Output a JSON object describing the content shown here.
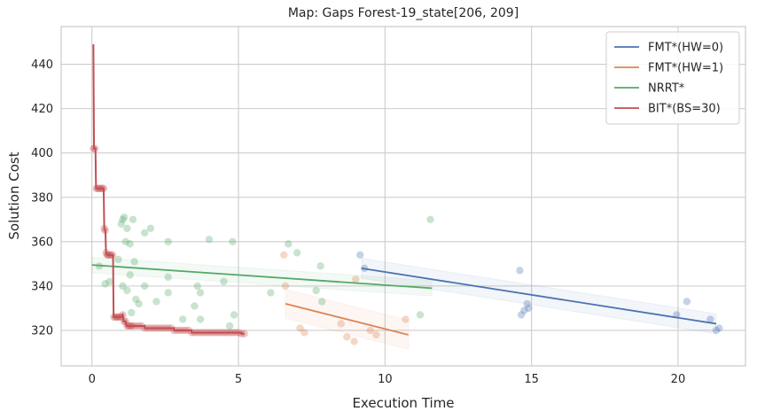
{
  "chart_data": {
    "type": "scatter",
    "title": "Map: Gaps Forest-19_state[206, 209]",
    "xlabel": "Execution Time",
    "ylabel": "Solution Cost",
    "xlim": [
      -1.05,
      22.3
    ],
    "ylim": [
      304,
      457
    ],
    "xticks": [
      0,
      5,
      10,
      15,
      20
    ],
    "yticks": [
      320,
      340,
      360,
      380,
      400,
      420,
      440
    ],
    "grid": true,
    "legend": {
      "position": "top-right"
    },
    "series": [
      {
        "name": "FMT*(HW=0)",
        "color": "#4c72b0",
        "points": [
          [
            9.15,
            354
          ],
          [
            9.3,
            348
          ],
          [
            14.6,
            347
          ],
          [
            14.65,
            327
          ],
          [
            14.75,
            329
          ],
          [
            14.85,
            332
          ],
          [
            14.9,
            330
          ],
          [
            19.95,
            327
          ],
          [
            20.3,
            333
          ],
          [
            21.1,
            325
          ],
          [
            21.3,
            320
          ],
          [
            21.4,
            321
          ]
        ],
        "trend": [
          [
            9.2,
            348
          ],
          [
            21.3,
            323
          ]
        ],
        "band_halfwidth": 4.5
      },
      {
        "name": "FMT*(HW=1)",
        "color": "#dd8452",
        "points": [
          [
            6.55,
            354
          ],
          [
            6.6,
            340
          ],
          [
            7.1,
            321
          ],
          [
            7.25,
            319
          ],
          [
            8.5,
            323
          ],
          [
            8.7,
            317
          ],
          [
            8.95,
            315
          ],
          [
            9.0,
            343
          ],
          [
            9.5,
            320
          ],
          [
            9.7,
            318
          ],
          [
            10.7,
            325
          ]
        ],
        "trend": [
          [
            6.6,
            332
          ],
          [
            10.8,
            318
          ]
        ],
        "band_halfwidth": 6.5
      },
      {
        "name": "NRRT*",
        "color": "#55a868",
        "points": [
          [
            0.25,
            349
          ],
          [
            0.45,
            341
          ],
          [
            0.6,
            342
          ],
          [
            0.9,
            352
          ],
          [
            1.0,
            368
          ],
          [
            1.05,
            370
          ],
          [
            1.1,
            371
          ],
          [
            1.15,
            360
          ],
          [
            1.2,
            366
          ],
          [
            1.3,
            359
          ],
          [
            1.4,
            370
          ],
          [
            1.05,
            340
          ],
          [
            1.2,
            338
          ],
          [
            1.3,
            345
          ],
          [
            1.45,
            351
          ],
          [
            1.35,
            328
          ],
          [
            1.5,
            334
          ],
          [
            1.6,
            332
          ],
          [
            1.8,
            340
          ],
          [
            1.8,
            364
          ],
          [
            2.0,
            366
          ],
          [
            2.2,
            333
          ],
          [
            2.6,
            360
          ],
          [
            2.6,
            344
          ],
          [
            2.6,
            337
          ],
          [
            3.1,
            325
          ],
          [
            3.5,
            331
          ],
          [
            3.6,
            340
          ],
          [
            3.7,
            337
          ],
          [
            3.7,
            325
          ],
          [
            4.0,
            361
          ],
          [
            4.5,
            342
          ],
          [
            4.7,
            322
          ],
          [
            4.8,
            360
          ],
          [
            4.85,
            327
          ],
          [
            6.1,
            337
          ],
          [
            6.7,
            359
          ],
          [
            7.0,
            355
          ],
          [
            7.65,
            338
          ],
          [
            7.8,
            349
          ],
          [
            7.85,
            333
          ],
          [
            11.2,
            327
          ],
          [
            11.55,
            370
          ]
        ],
        "trend": [
          [
            0.0,
            349.5
          ],
          [
            11.6,
            339
          ]
        ],
        "band_halfwidth": 3.5
      },
      {
        "name": "BIT*(BS=30)",
        "color": "#c44e52",
        "points": [
          [
            0.05,
            402
          ],
          [
            0.1,
            402
          ],
          [
            0.15,
            384
          ],
          [
            0.2,
            384
          ],
          [
            0.25,
            384
          ],
          [
            0.3,
            384
          ],
          [
            0.35,
            384
          ],
          [
            0.4,
            384
          ],
          [
            0.42,
            366
          ],
          [
            0.45,
            365
          ],
          [
            0.48,
            355
          ],
          [
            0.52,
            354
          ],
          [
            0.55,
            354
          ],
          [
            0.6,
            354
          ],
          [
            0.65,
            354
          ],
          [
            0.7,
            354
          ],
          [
            0.75,
            326
          ],
          [
            0.8,
            326
          ],
          [
            0.85,
            326
          ],
          [
            0.9,
            326
          ],
          [
            0.95,
            326
          ],
          [
            1.0,
            326
          ],
          [
            1.05,
            327
          ],
          [
            1.1,
            324
          ],
          [
            1.15,
            324
          ],
          [
            1.2,
            322
          ],
          [
            1.25,
            322
          ],
          [
            1.3,
            322
          ],
          [
            1.35,
            322
          ],
          [
            1.4,
            322
          ],
          [
            1.5,
            322
          ],
          [
            1.6,
            322
          ],
          [
            1.7,
            322
          ],
          [
            1.8,
            321
          ],
          [
            1.9,
            321
          ],
          [
            2.0,
            321
          ],
          [
            2.1,
            321
          ],
          [
            2.2,
            321
          ],
          [
            2.3,
            321
          ],
          [
            2.4,
            321
          ],
          [
            2.5,
            321
          ],
          [
            2.6,
            321
          ],
          [
            2.7,
            321
          ],
          [
            2.8,
            320
          ],
          [
            2.9,
            320
          ],
          [
            3.0,
            320
          ],
          [
            3.1,
            320
          ],
          [
            3.2,
            320
          ],
          [
            3.3,
            320
          ],
          [
            3.4,
            319
          ],
          [
            3.5,
            319
          ],
          [
            3.6,
            319
          ],
          [
            3.7,
            319
          ],
          [
            3.8,
            319
          ],
          [
            3.9,
            319
          ],
          [
            4.0,
            319
          ],
          [
            4.1,
            319
          ],
          [
            4.2,
            319
          ],
          [
            4.3,
            319
          ],
          [
            4.4,
            319
          ],
          [
            4.5,
            319
          ],
          [
            4.6,
            319
          ],
          [
            4.7,
            319
          ],
          [
            4.8,
            319
          ],
          [
            4.9,
            319
          ],
          [
            5.0,
            319
          ],
          [
            5.1,
            318.5
          ],
          [
            5.2,
            318.5
          ]
        ],
        "step": [
          [
            0.05,
            449
          ],
          [
            0.07,
            402
          ],
          [
            0.12,
            402
          ],
          [
            0.14,
            384
          ],
          [
            0.4,
            384
          ],
          [
            0.42,
            366
          ],
          [
            0.46,
            365
          ],
          [
            0.48,
            355
          ],
          [
            0.52,
            354
          ],
          [
            0.72,
            354
          ],
          [
            0.74,
            326
          ],
          [
            1.0,
            326
          ],
          [
            1.05,
            327
          ],
          [
            1.08,
            324
          ],
          [
            1.15,
            324
          ],
          [
            1.18,
            322
          ],
          [
            1.8,
            322
          ],
          [
            1.8,
            321
          ],
          [
            2.8,
            321
          ],
          [
            2.8,
            320
          ],
          [
            3.4,
            320
          ],
          [
            3.4,
            319
          ],
          [
            5.1,
            319
          ],
          [
            5.1,
            318.5
          ],
          [
            5.2,
            318.5
          ]
        ]
      }
    ]
  }
}
